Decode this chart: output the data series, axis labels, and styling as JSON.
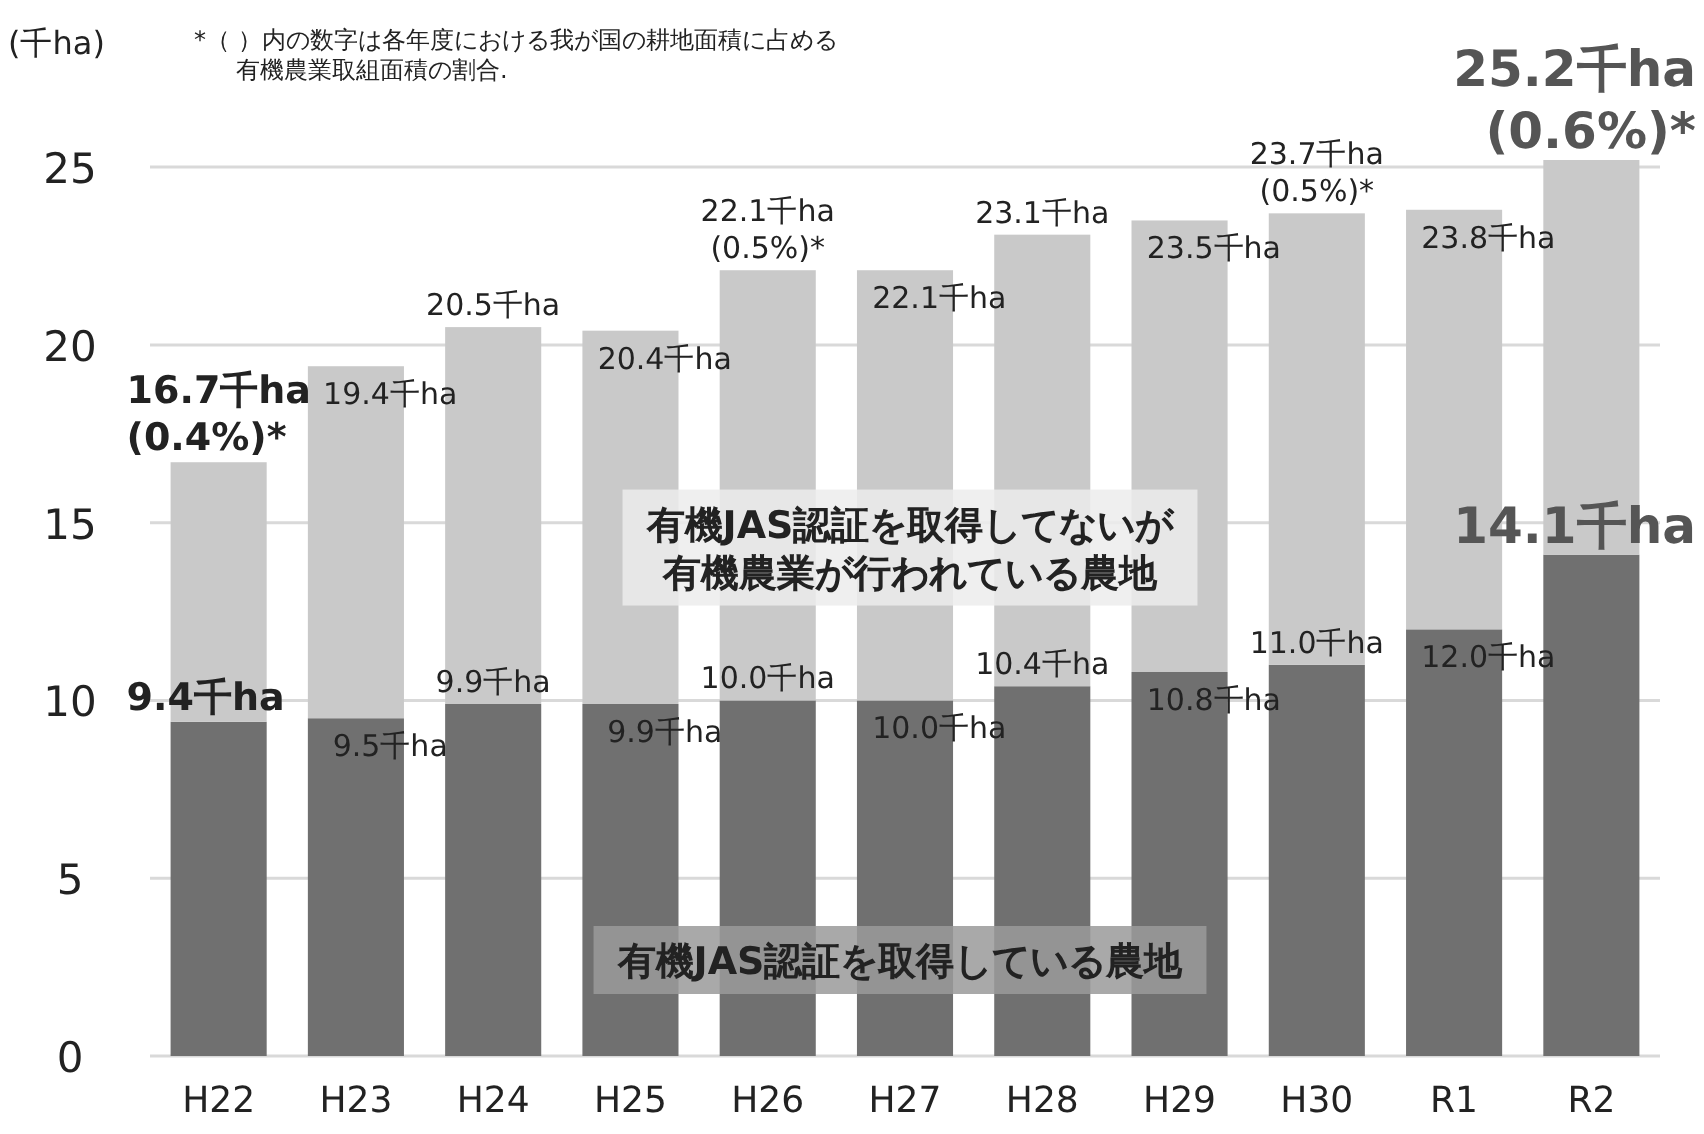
{
  "chart_data": {
    "type": "bar",
    "stacked": true,
    "ylabel": "(千ha)",
    "annotations": [
      "*（ ）内の数字は各年度における我が国の耕地面積に占める有機農業取組面積の割合.",
      {
        "text": "(0.4%)*",
        "x": "H22",
        "y": 16.7
      },
      {
        "text": "(0.5%)*",
        "x": "H26",
        "y": 22.1
      },
      {
        "text": "(0.5%)*",
        "x": "H30",
        "y": 23.7
      },
      {
        "text": "(0.6%)*",
        "x": "R2",
        "y": 25.2
      }
    ],
    "categories": [
      "H22",
      "H23",
      "H24",
      "H25",
      "H26",
      "H27",
      "H28",
      "H29",
      "H30",
      "R1",
      "R2"
    ],
    "series": [
      {
        "name": "有機JAS認証を取得している農地",
        "color": "#707070",
        "values": [
          9.4,
          9.5,
          9.9,
          9.9,
          10.0,
          10.0,
          10.4,
          10.8,
          11.0,
          12.0,
          14.1
        ],
        "value_labels": [
          "9.4千ha",
          "9.5千ha",
          "9.9千ha",
          "9.9千ha",
          "10.0千ha",
          "10.0千ha",
          "10.4千ha",
          "10.8千ha",
          "11.0千ha",
          "12.0千ha",
          "14.1千ha"
        ]
      },
      {
        "name": "有機JAS認証を取得してないが有機農業が行われている農地",
        "color": "#c9c9c9",
        "values": [
          7.3,
          9.9,
          10.6,
          10.5,
          12.1,
          12.1,
          12.7,
          12.7,
          12.7,
          11.8,
          11.1
        ]
      }
    ],
    "totals": [
      "16.7千ha",
      "19.4千ha",
      "20.5千ha",
      "20.4千ha",
      "22.1千ha",
      "22.1千ha",
      "23.1千ha",
      "23.5千ha",
      "23.7千ha",
      "23.8千ha",
      "25.2千ha"
    ],
    "ylim": [
      0,
      25.2
    ],
    "yticks": [
      0,
      5,
      10,
      15,
      20,
      25
    ],
    "grid": "y",
    "legend": false
  }
}
